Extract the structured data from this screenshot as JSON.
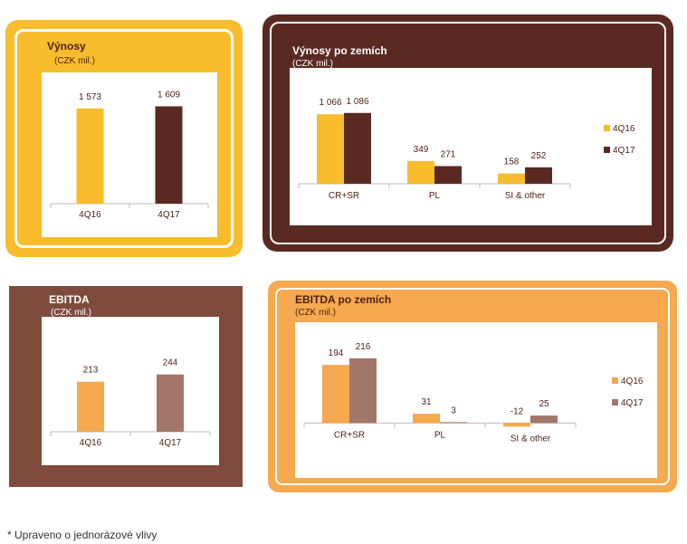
{
  "colors": {
    "gold": "#F8BC2C",
    "dark_brown": "#5A2A22",
    "orange": "#F6A94E",
    "taupe": "#A3766A",
    "panel_brown": "#7E4B3C",
    "text_dark": "#4A1F14"
  },
  "footnote": "* Upraveno o jednorázové vlivy",
  "chart_data": [
    {
      "type": "bar",
      "title": "Výnosy",
      "subtitle": "(CZK mil.)",
      "categories": [
        "4Q16",
        "4Q17"
      ],
      "values": [
        1573,
        1609
      ],
      "value_labels": [
        "1 573",
        "1 609"
      ],
      "ylim": [
        0,
        1900
      ],
      "bar_colors": [
        "#F8BC2C",
        "#5A2A22"
      ]
    },
    {
      "type": "bar",
      "title": "Výnosy po zemích",
      "subtitle": "(CZK mil.)",
      "categories": [
        "CR+SR",
        "PL",
        "SI & other"
      ],
      "series": [
        {
          "name": "4Q16",
          "values": [
            1066,
            349,
            158
          ],
          "labels": [
            "1 066",
            "349",
            "158"
          ],
          "color": "#F8BC2C"
        },
        {
          "name": "4Q17",
          "values": [
            1086,
            271,
            252
          ],
          "labels": [
            "1 086",
            "271",
            "252"
          ],
          "color": "#5A2A22"
        }
      ],
      "ylim": [
        0,
        1500
      ],
      "legend": "right"
    },
    {
      "type": "bar",
      "title": "EBITDA",
      "subtitle": "(CZK mil.)",
      "categories": [
        "4Q16",
        "4Q17"
      ],
      "values": [
        213,
        244
      ],
      "value_labels": [
        "213",
        "244"
      ],
      "ylim": [
        0,
        420
      ],
      "bar_colors": [
        "#F6A94E",
        "#A3766A"
      ]
    },
    {
      "type": "bar",
      "title": "EBITDA po zemích",
      "subtitle": "(CZK mil.)",
      "categories": [
        "CR+SR",
        "PL",
        "SI & other"
      ],
      "series": [
        {
          "name": "4Q16",
          "values": [
            194,
            31,
            -12
          ],
          "labels": [
            "194",
            "31",
            "-12"
          ],
          "color": "#F6A94E"
        },
        {
          "name": "4Q17",
          "values": [
            216,
            3,
            25
          ],
          "labels": [
            "216",
            "3",
            "25"
          ],
          "color": "#A3766A"
        }
      ],
      "ylim": [
        -20,
        300
      ],
      "legend": "right"
    }
  ]
}
